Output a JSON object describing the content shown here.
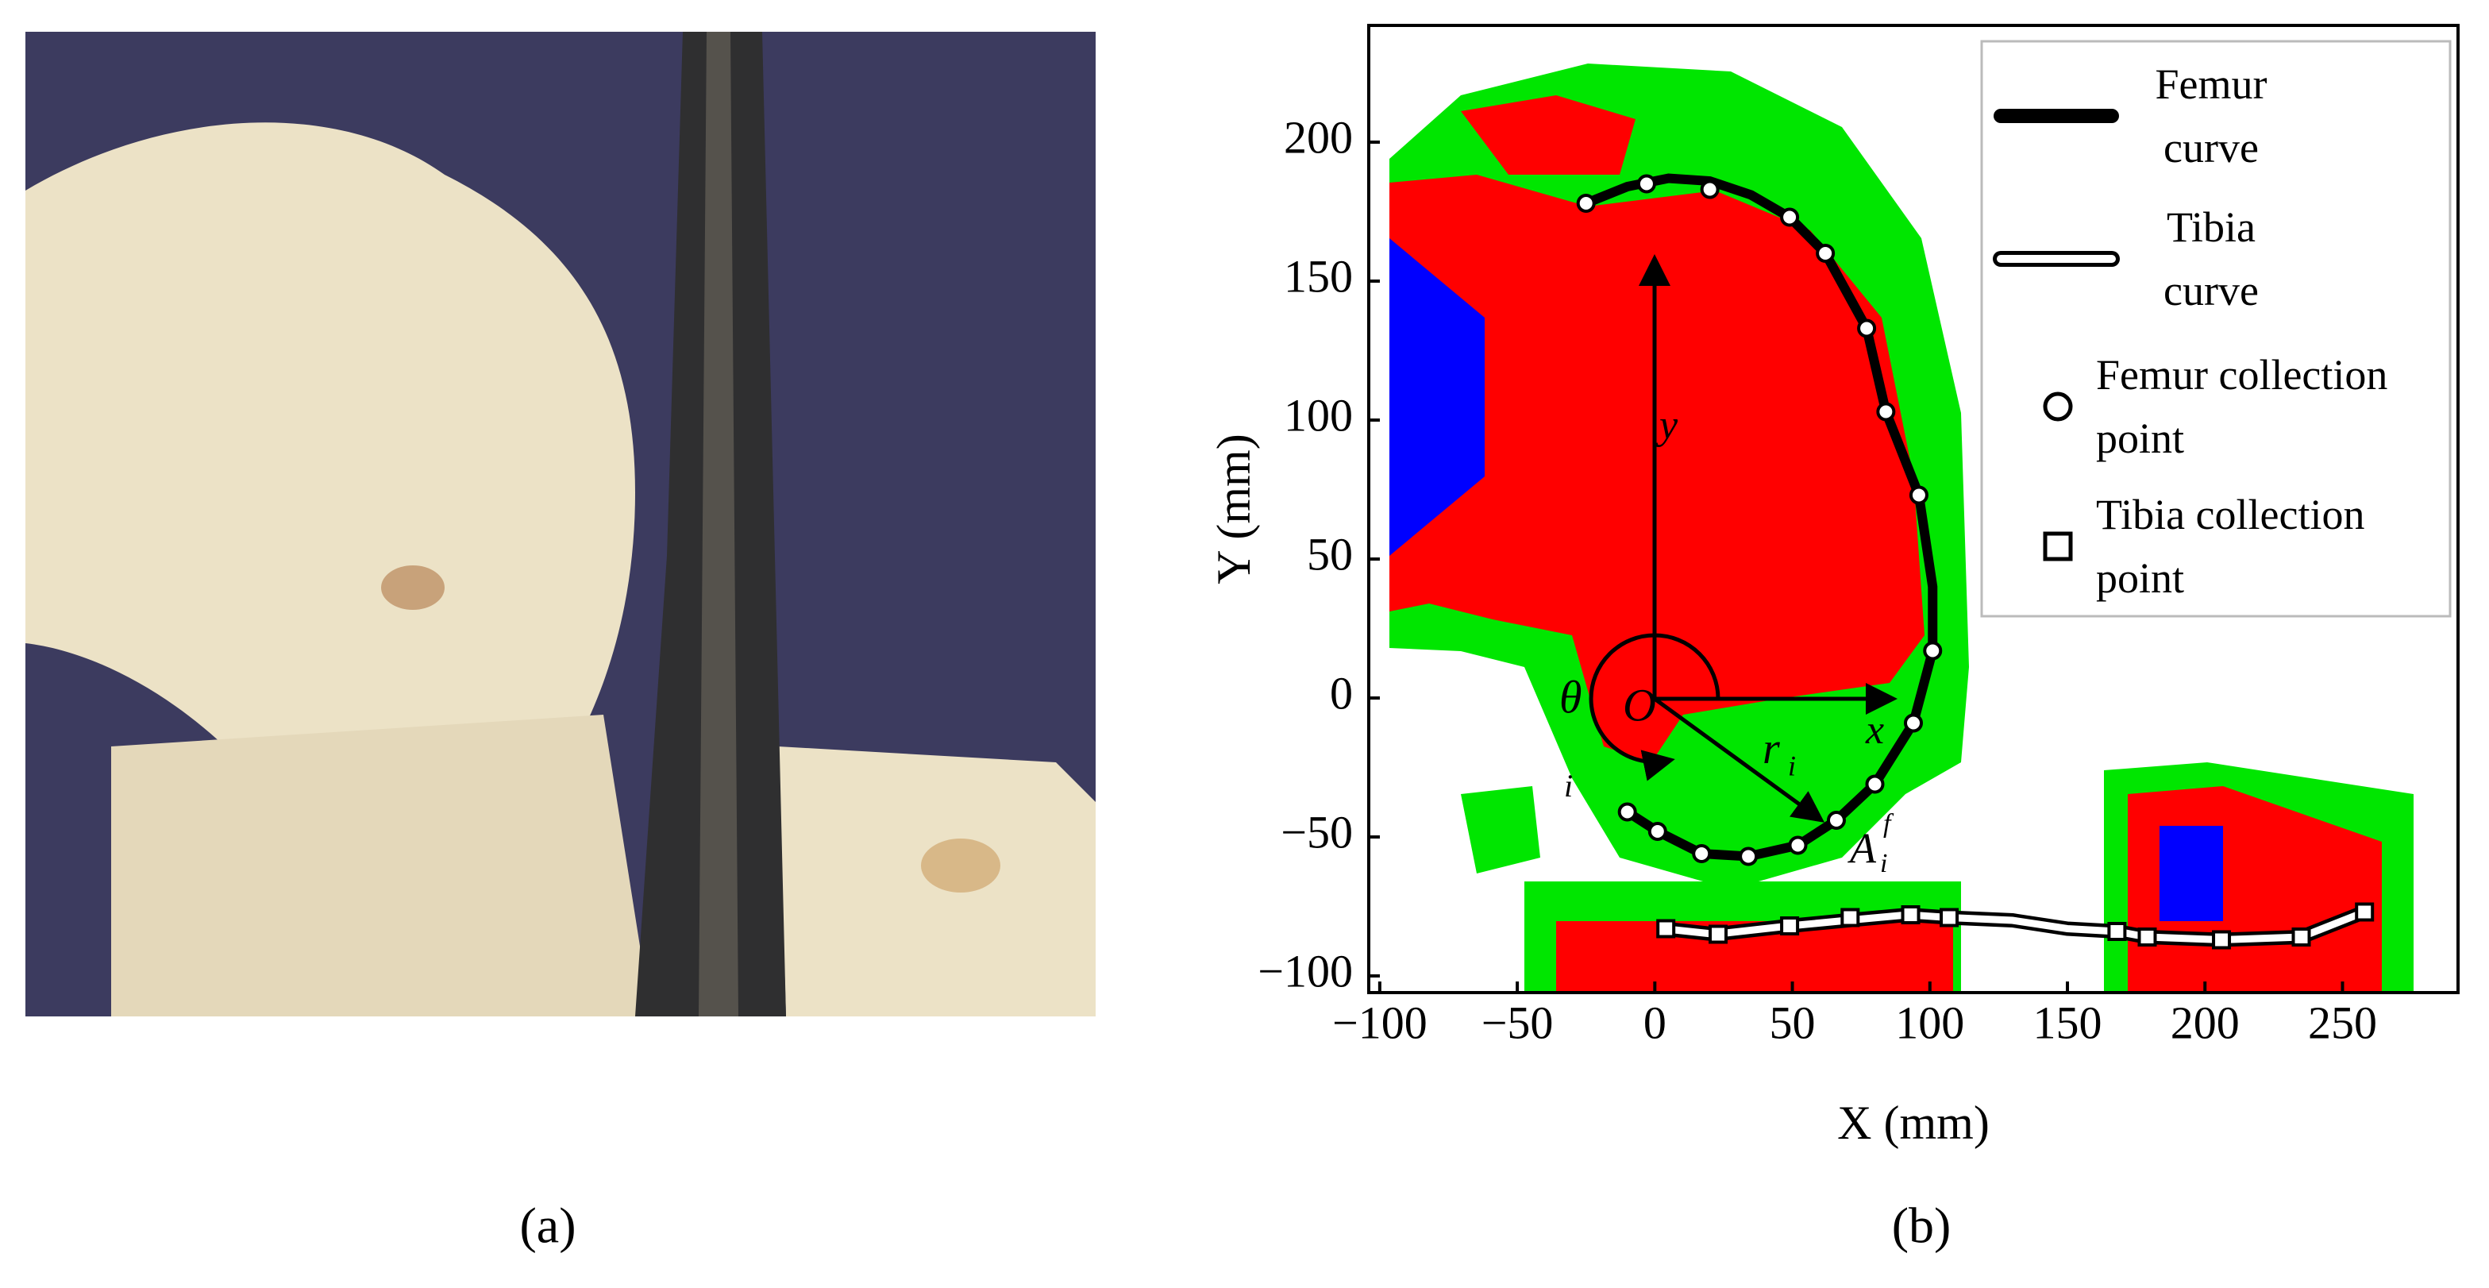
{
  "figure": {
    "labels": [
      "(a)",
      "(b)"
    ]
  },
  "chart_data": {
    "type": "line",
    "xlabel": "X (mm)",
    "ylabel": "Y (mm)",
    "xlim": [
      -104,
      292
    ],
    "ylim": [
      -106,
      242
    ],
    "xticks": [
      {
        "value": -100,
        "label": "−100"
      },
      {
        "value": -50,
        "label": "−50"
      },
      0,
      50,
      100,
      150,
      200,
      250
    ],
    "yticks": [
      {
        "value": -100,
        "label": "−100"
      },
      {
        "value": -50,
        "label": "−50"
      },
      0,
      50,
      100,
      150,
      200
    ],
    "legend": "upper right",
    "series": [
      {
        "name": "Femur curve",
        "kind": "line",
        "color": "#000000",
        "x": [
          -25,
          -10,
          5,
          20,
          35,
          49,
          62,
          77,
          84,
          96,
          101,
          101,
          94,
          80,
          66,
          52,
          34,
          17,
          1,
          -10
        ],
        "values": [
          178,
          184,
          187,
          186,
          181,
          173,
          160,
          133,
          103,
          73,
          40,
          17,
          -9,
          -31,
          -44,
          -53,
          -57,
          -56,
          -48,
          -41
        ]
      },
      {
        "name": "Tibia curve",
        "kind": "line",
        "color": "#ffffff",
        "x": [
          3,
          22,
          49,
          70,
          92,
          107,
          130,
          150,
          168,
          179,
          206,
          235,
          258
        ],
        "values": [
          -83,
          -85,
          -82,
          -80,
          -78,
          -79,
          -80,
          -83,
          -84,
          -86,
          -87,
          -86,
          -77
        ]
      },
      {
        "name": "Femur collection point",
        "kind": "circle",
        "color": "#ffffff",
        "x": [
          -25,
          -3,
          20,
          49,
          62,
          77,
          84,
          96,
          101,
          94,
          80,
          66,
          52,
          34,
          17,
          1,
          -10
        ],
        "values": [
          178,
          185,
          183,
          173,
          160,
          133,
          103,
          73,
          17,
          -9,
          -31,
          -44,
          -53,
          -57,
          -56,
          -48,
          -41
        ]
      },
      {
        "name": "Tibia collection point",
        "kind": "square",
        "color": "#ffffff",
        "x": [
          4,
          23,
          49,
          71,
          93,
          107,
          168,
          179,
          206,
          235,
          258
        ],
        "values": [
          -83,
          -85,
          -82,
          -79,
          -78,
          -79,
          -84,
          -86,
          -87,
          -86,
          -77
        ]
      }
    ],
    "annotations": [
      "y",
      "x",
      "O",
      "θ",
      "i",
      "r",
      "i",
      "A",
      "i",
      "f"
    ]
  }
}
